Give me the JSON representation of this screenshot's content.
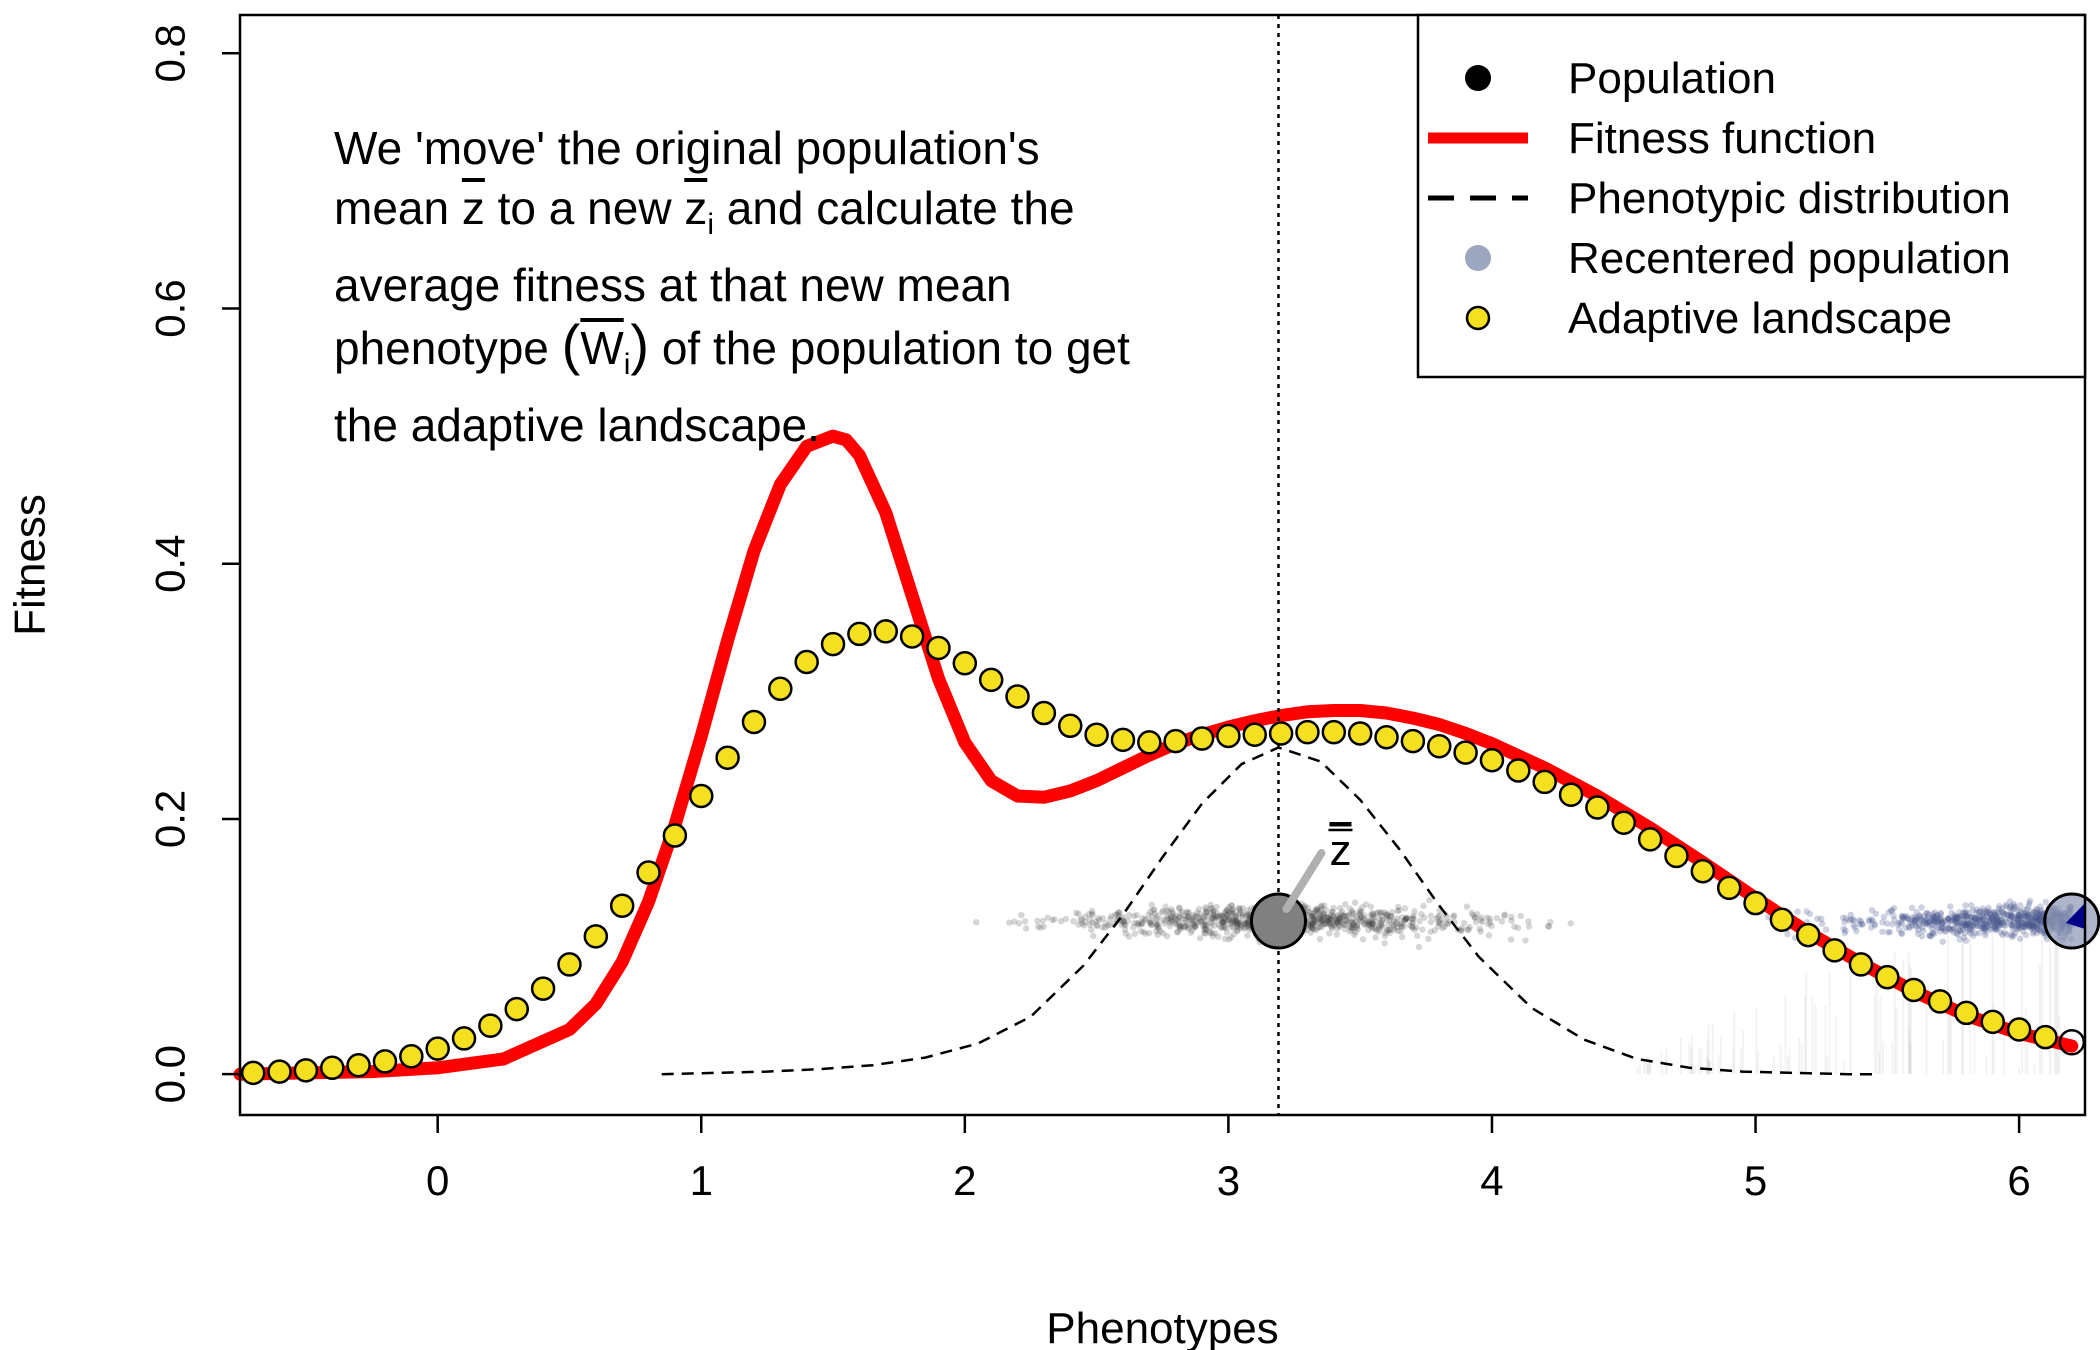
{
  "chart_data": {
    "type": "line",
    "xlabel": "Phenotypes",
    "ylabel": "Fitness",
    "xlim": [
      -0.75,
      6.25
    ],
    "ylim": [
      -0.032,
      0.83
    ],
    "x_ticks": [
      "0",
      "1",
      "2",
      "3",
      "4",
      "5",
      "6"
    ],
    "y_ticks": [
      "0.0",
      "0.2",
      "0.4",
      "0.6",
      "0.8"
    ],
    "mean_phenotype": 3.19,
    "mean_label": "z",
    "population_y": 0.12,
    "recentered_x": 6.2,
    "legend_position": "top-right",
    "legend": [
      {
        "label": "Population",
        "symbol": "filled-circle",
        "color": "#000000"
      },
      {
        "label": "Fitness function",
        "symbol": "thick-line",
        "color": "#ff0000"
      },
      {
        "label": "Phenotypic distribution",
        "symbol": "dashed-line",
        "color": "#000000"
      },
      {
        "label": "Recentered population",
        "symbol": "filled-circle",
        "color": "#8c96b4"
      },
      {
        "label": "Adaptive landscape",
        "symbol": "circle",
        "color": "#f5e020"
      }
    ],
    "annotation": {
      "line1": "We 'move' the original population's",
      "line2a": "mean ",
      "line2b": "z",
      "line2c": " to a new ",
      "line2d": "z",
      "line2e": "i",
      "line2f": " and calculate the",
      "line3": "average fitness at that new mean",
      "line4a": "phenotype ",
      "line4b": "(",
      "line4c": "W",
      "line4d": "i",
      "line4e": ")",
      "line4f": " of the population to get",
      "line5": "the adaptive landscape."
    },
    "series": [
      {
        "name": "Fitness function",
        "color": "#ff0000",
        "x": [
          -0.75,
          -0.5,
          -0.25,
          0,
          0.25,
          0.5,
          0.6,
          0.7,
          0.8,
          0.9,
          1.0,
          1.1,
          1.2,
          1.3,
          1.4,
          1.5,
          1.55,
          1.6,
          1.7,
          1.8,
          1.9,
          2.0,
          2.1,
          2.2,
          2.3,
          2.4,
          2.5,
          2.6,
          2.7,
          2.8,
          2.9,
          3.0,
          3.1,
          3.2,
          3.3,
          3.4,
          3.5,
          3.6,
          3.7,
          3.8,
          3.9,
          4.0,
          4.2,
          4.4,
          4.6,
          4.8,
          5.0,
          5.2,
          5.4,
          5.6,
          5.8,
          6.0,
          6.2
        ],
        "y": [
          0.0,
          0.001,
          0.002,
          0.005,
          0.012,
          0.035,
          0.055,
          0.088,
          0.135,
          0.195,
          0.265,
          0.34,
          0.41,
          0.462,
          0.492,
          0.5,
          0.497,
          0.485,
          0.44,
          0.375,
          0.31,
          0.26,
          0.23,
          0.218,
          0.217,
          0.222,
          0.23,
          0.24,
          0.25,
          0.259,
          0.266,
          0.272,
          0.277,
          0.281,
          0.284,
          0.285,
          0.285,
          0.283,
          0.279,
          0.274,
          0.267,
          0.259,
          0.24,
          0.218,
          0.193,
          0.166,
          0.138,
          0.111,
          0.087,
          0.065,
          0.046,
          0.032,
          0.022
        ]
      },
      {
        "name": "Adaptive landscape",
        "color": "#f5e020",
        "x": [
          -0.7,
          -0.6,
          -0.5,
          -0.4,
          -0.3,
          -0.2,
          -0.1,
          0.0,
          0.1,
          0.2,
          0.3,
          0.4,
          0.5,
          0.6,
          0.7,
          0.8,
          0.9,
          1.0,
          1.1,
          1.2,
          1.3,
          1.4,
          1.5,
          1.6,
          1.7,
          1.8,
          1.9,
          2.0,
          2.1,
          2.2,
          2.3,
          2.4,
          2.5,
          2.6,
          2.7,
          2.8,
          2.9,
          3.0,
          3.1,
          3.2,
          3.3,
          3.4,
          3.5,
          3.6,
          3.7,
          3.8,
          3.9,
          4.0,
          4.1,
          4.2,
          4.3,
          4.4,
          4.5,
          4.6,
          4.7,
          4.8,
          4.9,
          5.0,
          5.1,
          5.2,
          5.3,
          5.4,
          5.5,
          5.6,
          5.7,
          5.8,
          5.9,
          6.0,
          6.1
        ],
        "y": [
          0.001,
          0.002,
          0.003,
          0.005,
          0.007,
          0.01,
          0.014,
          0.02,
          0.028,
          0.038,
          0.051,
          0.067,
          0.086,
          0.108,
          0.132,
          0.158,
          0.187,
          0.218,
          0.248,
          0.276,
          0.302,
          0.323,
          0.337,
          0.345,
          0.347,
          0.343,
          0.334,
          0.322,
          0.309,
          0.296,
          0.283,
          0.273,
          0.266,
          0.262,
          0.26,
          0.261,
          0.263,
          0.265,
          0.266,
          0.267,
          0.268,
          0.268,
          0.267,
          0.264,
          0.261,
          0.257,
          0.252,
          0.246,
          0.238,
          0.229,
          0.219,
          0.209,
          0.197,
          0.184,
          0.171,
          0.159,
          0.146,
          0.134,
          0.121,
          0.109,
          0.097,
          0.086,
          0.076,
          0.066,
          0.057,
          0.048,
          0.041,
          0.035,
          0.029
        ]
      },
      {
        "name": "Phenotypic distribution",
        "color": "#000000",
        "x": [
          0.85,
          1.05,
          1.25,
          1.45,
          1.65,
          1.85,
          2.05,
          2.25,
          2.45,
          2.6,
          2.75,
          2.9,
          3.05,
          3.19,
          3.35,
          3.5,
          3.65,
          3.8,
          3.95,
          4.15,
          4.35,
          4.55,
          4.75,
          4.95,
          5.15,
          5.35,
          5.45
        ],
        "y": [
          0.0,
          0.001,
          0.002,
          0.004,
          0.007,
          0.013,
          0.024,
          0.045,
          0.085,
          0.125,
          0.17,
          0.212,
          0.243,
          0.256,
          0.245,
          0.215,
          0.176,
          0.132,
          0.092,
          0.052,
          0.027,
          0.012,
          0.005,
          0.002,
          0.001,
          0.0,
          0.0
        ]
      }
    ]
  }
}
